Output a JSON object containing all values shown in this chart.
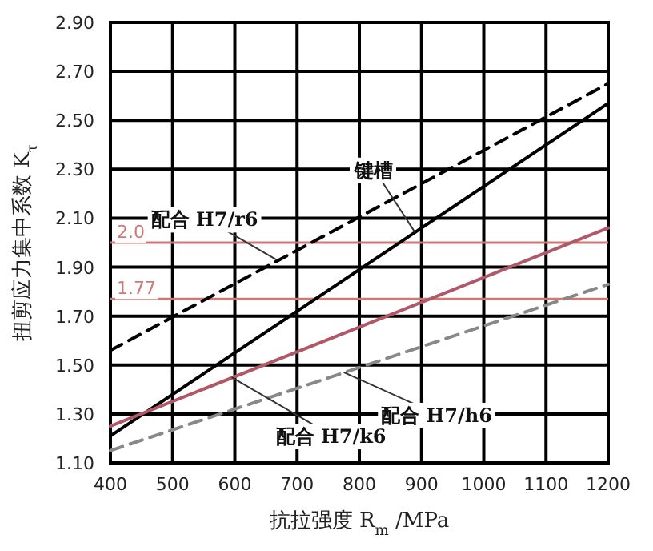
{
  "chart_data": {
    "type": "line",
    "xlabel": "抗拉强度 R$_{m}$ /MPa",
    "ylabel": "扭剪应力集中系数 K$_{τ}$",
    "x": [
      400,
      1200
    ],
    "series": [
      {
        "color": "#000000",
        "line_style": "solid",
        "values": [
          1.21,
          2.57
        ]
      },
      {
        "color": "#000000",
        "line_style": "dashed",
        "values": [
          1.56,
          2.65
        ]
      },
      {
        "color": "#b05868",
        "line_style": "solid",
        "values": [
          1.25,
          2.06
        ]
      },
      {
        "color": "#888888",
        "line_style": "dashed",
        "values": [
          1.15,
          1.83
        ]
      }
    ],
    "xlim": [
      400,
      1200
    ],
    "xticks": [
      400,
      500,
      600,
      700,
      800,
      900,
      1000,
      1100,
      1200
    ],
    "ylim": [
      1.1,
      2.9
    ],
    "yticks": [
      {
        "value": 1.1,
        "label": "1.10"
      },
      {
        "value": 1.3,
        "label": "1.30"
      },
      {
        "value": 1.5,
        "label": "1.50"
      },
      {
        "value": 1.7,
        "label": "1.70"
      },
      {
        "value": 1.9,
        "label": "1.90"
      },
      {
        "value": 2.1,
        "label": "2.10"
      },
      {
        "value": 2.3,
        "label": "2.30"
      },
      {
        "value": 2.5,
        "label": "2.50"
      },
      {
        "value": 2.7,
        "label": "2.70"
      },
      {
        "value": 2.9,
        "label": "2.90"
      }
    ],
    "grid": true,
    "ref_lines": [
      {
        "axis": "y",
        "value": 2.0,
        "label": "2.0",
        "color": "#d07878"
      },
      {
        "axis": "y",
        "value": 1.77,
        "label": "1.77",
        "color": "#d07878"
      }
    ],
    "annotations": [
      {
        "text": "键槽",
        "x": 890,
        "y": 2.04
      },
      {
        "text": "配合 H7/r6",
        "x": 667,
        "y": 1.93
      },
      {
        "text": "配合 H7/k6",
        "x": 595,
        "y": 1.45
      },
      {
        "text": "配合 H7/h6",
        "x": 775,
        "y": 1.47
      }
    ]
  }
}
